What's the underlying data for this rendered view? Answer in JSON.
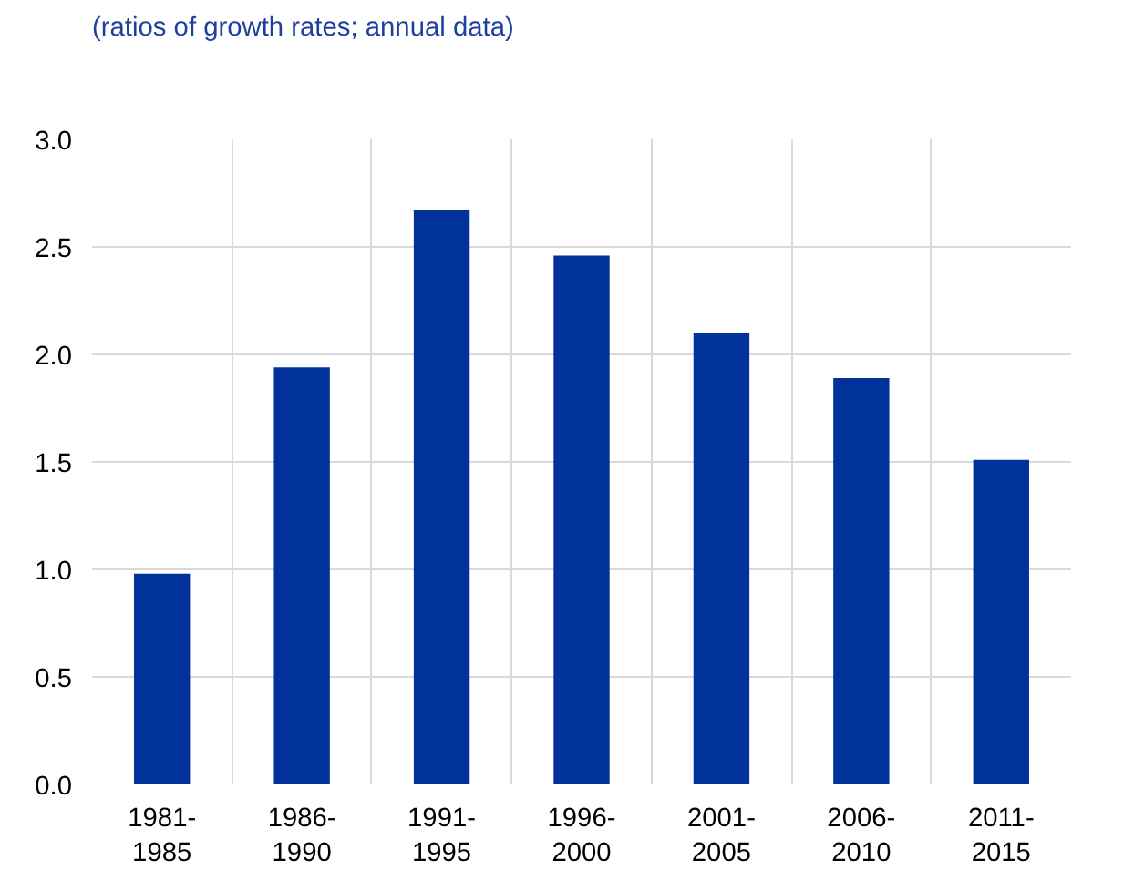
{
  "chart_data": {
    "type": "bar",
    "subtitle": "(ratios of growth rates; annual data)",
    "categories": [
      "1981-1985",
      "1986-1990",
      "1991-1995",
      "1996-2000",
      "2001-2005",
      "2006-2010",
      "2011-2015"
    ],
    "values": [
      0.98,
      1.94,
      2.67,
      2.46,
      2.1,
      1.89,
      1.51
    ],
    "color": "#003299",
    "ylim": [
      0,
      3
    ],
    "yticks": [
      {
        "value": 0,
        "label": "0.0"
      },
      {
        "value": 0.5,
        "label": "0.5"
      },
      {
        "value": 1,
        "label": "1.0"
      },
      {
        "value": 1.5,
        "label": "1.5"
      },
      {
        "value": 2,
        "label": "2.0"
      },
      {
        "value": 2.5,
        "label": "2.5"
      },
      {
        "value": 3,
        "label": "3.0"
      }
    ],
    "grid": true
  }
}
